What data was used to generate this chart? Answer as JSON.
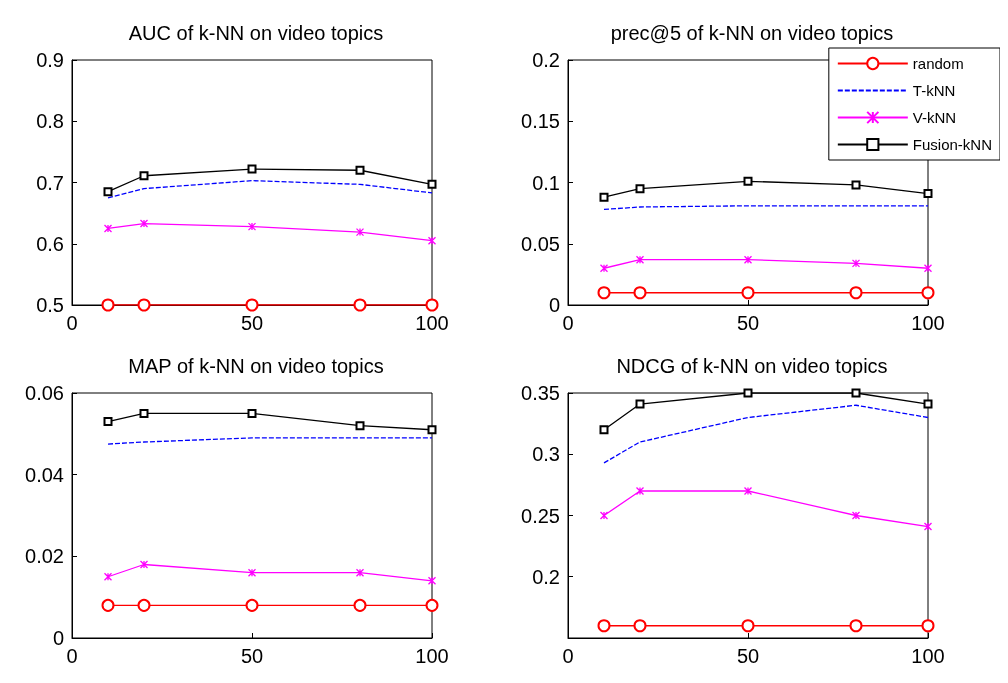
{
  "chart_data": [
    {
      "type": "line",
      "title": "AUC of k-NN on video topics",
      "x": [
        10,
        20,
        50,
        80,
        100
      ],
      "xlim": [
        0,
        100
      ],
      "xticks": [
        0,
        50,
        100
      ],
      "ylim": [
        0.5,
        0.9
      ],
      "yticks": [
        0.5,
        0.6,
        0.7,
        0.8,
        0.9
      ],
      "grid": false,
      "legend": false,
      "series": [
        {
          "color": "#ff0000",
          "marker": "circle",
          "line_style": "solid",
          "values": [
            0.5,
            0.5,
            0.5,
            0.5,
            0.5
          ]
        },
        {
          "color": "#0000ff",
          "marker": "none",
          "line_style": "dashed",
          "values": [
            0.675,
            0.69,
            0.703,
            0.697,
            0.683
          ]
        },
        {
          "color": "#ff00ff",
          "marker": "cross",
          "line_style": "solid",
          "values": [
            0.625,
            0.633,
            0.628,
            0.619,
            0.605
          ]
        },
        {
          "color": "#000000",
          "marker": "square",
          "line_style": "solid",
          "values": [
            0.685,
            0.711,
            0.722,
            0.72,
            0.697
          ]
        }
      ]
    },
    {
      "type": "line",
      "title": "prec@5 of k-NN on video topics",
      "x": [
        10,
        20,
        50,
        80,
        100
      ],
      "xlim": [
        0,
        100
      ],
      "xticks": [
        0,
        50,
        100
      ],
      "ylim": [
        0,
        0.2
      ],
      "yticks": [
        0,
        0.05,
        0.1,
        0.15,
        0.2
      ],
      "grid": false,
      "legend": "top right",
      "series": [
        {
          "name": "random",
          "color": "#ff0000",
          "marker": "circle",
          "line_style": "solid",
          "values": [
            0.01,
            0.01,
            0.01,
            0.01,
            0.01
          ]
        },
        {
          "name": "T-kNN",
          "color": "#0000ff",
          "marker": "none",
          "line_style": "dashed",
          "values": [
            0.078,
            0.08,
            0.081,
            0.081,
            0.081
          ]
        },
        {
          "name": "V-kNN",
          "color": "#ff00ff",
          "marker": "cross",
          "line_style": "solid",
          "values": [
            0.03,
            0.037,
            0.037,
            0.034,
            0.03
          ]
        },
        {
          "name": "Fusion-kNN",
          "color": "#000000",
          "marker": "square",
          "line_style": "solid",
          "values": [
            0.088,
            0.095,
            0.101,
            0.098,
            0.091
          ]
        }
      ]
    },
    {
      "type": "line",
      "title": "MAP of k-NN on video topics",
      "x": [
        10,
        20,
        50,
        80,
        100
      ],
      "xlim": [
        0,
        100
      ],
      "xticks": [
        0,
        50,
        100
      ],
      "ylim": [
        0,
        0.06
      ],
      "yticks": [
        0,
        0.02,
        0.04,
        0.06
      ],
      "grid": false,
      "legend": false,
      "series": [
        {
          "color": "#ff0000",
          "marker": "circle",
          "line_style": "solid",
          "values": [
            0.008,
            0.008,
            0.008,
            0.008,
            0.008
          ]
        },
        {
          "color": "#0000ff",
          "marker": "none",
          "line_style": "dashed",
          "values": [
            0.0475,
            0.048,
            0.049,
            0.049,
            0.049
          ]
        },
        {
          "color": "#ff00ff",
          "marker": "cross",
          "line_style": "solid",
          "values": [
            0.015,
            0.018,
            0.016,
            0.016,
            0.014
          ]
        },
        {
          "color": "#000000",
          "marker": "square",
          "line_style": "solid",
          "values": [
            0.053,
            0.055,
            0.055,
            0.052,
            0.051
          ]
        }
      ]
    },
    {
      "type": "line",
      "title": "NDCG of k-NN on video topics",
      "x": [
        10,
        20,
        50,
        80,
        100
      ],
      "xlim": [
        0,
        100
      ],
      "xticks": [
        0,
        50,
        100
      ],
      "ylim": [
        0.15,
        0.35
      ],
      "yticks": [
        0.2,
        0.25,
        0.3,
        0.35
      ],
      "grid": false,
      "legend": false,
      "series": [
        {
          "color": "#ff0000",
          "marker": "circle",
          "line_style": "solid",
          "values": [
            0.16,
            0.16,
            0.16,
            0.16,
            0.16
          ]
        },
        {
          "color": "#0000ff",
          "marker": "none",
          "line_style": "dashed",
          "values": [
            0.293,
            0.31,
            0.33,
            0.34,
            0.33
          ]
        },
        {
          "color": "#ff00ff",
          "marker": "cross",
          "line_style": "solid",
          "values": [
            0.25,
            0.27,
            0.27,
            0.25,
            0.241
          ]
        },
        {
          "color": "#000000",
          "marker": "square",
          "line_style": "solid",
          "values": [
            0.32,
            0.341,
            0.35,
            0.35,
            0.341
          ]
        }
      ]
    }
  ]
}
